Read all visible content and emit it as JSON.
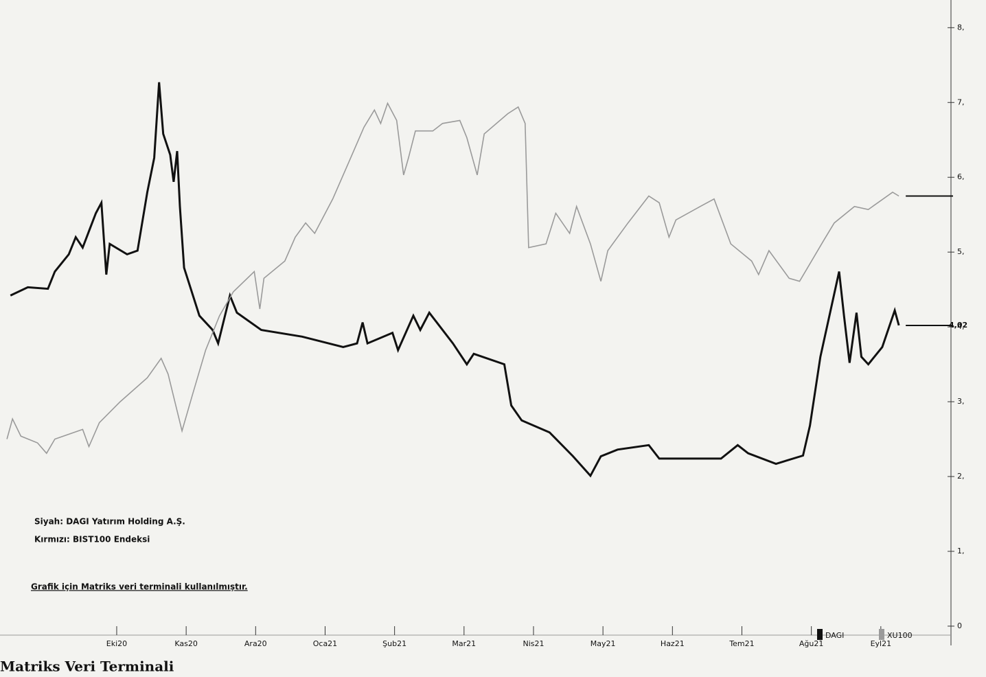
{
  "chart_data": {
    "type": "line",
    "footer": "Matriks Veri Terminali",
    "notes": [
      "Siyah: DAGI Yatırım Holding A.Ş.",
      "Kırmızı: BIST100 Endeksi"
    ],
    "source": "Grafik için Matriks veri terminali kullanılmıştır.",
    "xlim": [
      -0.68,
      13
    ],
    "xticks": [
      {
        "value": 1,
        "label": "Eki20"
      },
      {
        "value": 2,
        "label": "Kas20"
      },
      {
        "value": 3,
        "label": "Ara20"
      },
      {
        "value": 4,
        "label": "Oca21"
      },
      {
        "value": 5,
        "label": "Şub21"
      },
      {
        "value": 6,
        "label": "Mar21"
      },
      {
        "value": 7,
        "label": "Nis21"
      },
      {
        "value": 8,
        "label": "May21"
      },
      {
        "value": 9,
        "label": "Haz21"
      },
      {
        "value": 10,
        "label": "Tem21"
      },
      {
        "value": 11,
        "label": "Ağu21"
      },
      {
        "value": 12,
        "label": "Eyl21"
      }
    ],
    "ylim": [
      -0.12,
      8.37
    ],
    "yticks": [
      0,
      {
        "value": 1,
        "label": "1,"
      },
      {
        "value": 2,
        "label": "2,"
      },
      {
        "value": 3,
        "label": "3,"
      },
      {
        "value": 4,
        "label": "4,"
      },
      {
        "value": 5,
        "label": "5,"
      },
      {
        "value": 6,
        "label": "6,"
      },
      {
        "value": 7,
        "label": "7,"
      },
      {
        "value": 8,
        "label": "8,"
      }
    ],
    "last_price": {
      "value": 4.02,
      "label": "4,02"
    },
    "series": [
      {
        "name": "DAGI",
        "color": "#111111",
        "x": [
          -0.53,
          -0.28,
          0.01,
          0.11,
          0.31,
          0.41,
          0.51,
          0.7,
          0.78,
          0.85,
          0.9,
          1.15,
          1.3,
          1.44,
          1.54,
          1.61,
          1.67,
          1.77,
          1.82,
          1.87,
          1.91,
          1.97,
          2.19,
          2.38,
          2.46,
          2.63,
          2.73,
          3.08,
          3.67,
          4.26,
          4.46,
          4.54,
          4.61,
          4.97,
          5.05,
          5.27,
          5.37,
          5.5,
          5.84,
          6.04,
          6.14,
          6.58,
          6.68,
          6.83,
          7.23,
          7.57,
          7.82,
          7.97,
          8.21,
          8.66,
          8.81,
          9.4,
          9.7,
          9.94,
          10.09,
          10.49,
          10.88,
          10.98,
          11.13,
          11.4,
          11.47,
          11.55,
          11.65,
          11.72,
          11.82,
          12.02,
          12.2,
          12.26
        ],
        "values": [
          4.42,
          4.53,
          4.51,
          4.74,
          4.97,
          5.2,
          5.06,
          5.52,
          5.66,
          4.7,
          5.11,
          4.97,
          5.02,
          5.8,
          6.26,
          7.27,
          6.58,
          6.3,
          5.94,
          6.35,
          5.61,
          4.79,
          4.15,
          3.96,
          3.78,
          4.42,
          4.19,
          3.96,
          3.87,
          3.73,
          3.78,
          4.06,
          3.78,
          3.92,
          3.69,
          4.15,
          3.96,
          4.19,
          3.78,
          3.5,
          3.64,
          3.5,
          2.95,
          2.75,
          2.59,
          2.27,
          2.01,
          2.27,
          2.36,
          2.42,
          2.24,
          2.24,
          2.24,
          2.42,
          2.31,
          2.17,
          2.28,
          2.68,
          3.6,
          4.74,
          4.15,
          3.52,
          4.19,
          3.6,
          3.5,
          3.73,
          4.22,
          4.02
        ]
      },
      {
        "name": "XU100",
        "color": "#9a9a9a",
        "x": [
          -0.58,
          -0.5,
          -0.38,
          -0.14,
          -0.01,
          0.11,
          0.51,
          0.6,
          0.75,
          1.05,
          1.44,
          1.64,
          1.74,
          1.94,
          2.09,
          2.28,
          2.48,
          2.68,
          2.98,
          3.06,
          3.12,
          3.42,
          3.57,
          3.72,
          3.85,
          4.11,
          4.41,
          4.56,
          4.71,
          4.8,
          4.9,
          5.03,
          5.13,
          5.2,
          5.3,
          5.55,
          5.69,
          5.94,
          6.04,
          6.19,
          6.29,
          6.63,
          6.78,
          6.88,
          6.93,
          7.18,
          7.32,
          7.52,
          7.62,
          7.82,
          7.97,
          8.07,
          8.36,
          8.66,
          8.81,
          8.95,
          9.05,
          9.4,
          9.6,
          9.84,
          10.14,
          10.24,
          10.39,
          10.68,
          10.83,
          11.18,
          11.33,
          11.62,
          11.82,
          12.17,
          12.26
        ],
        "values": [
          2.5,
          2.77,
          2.54,
          2.45,
          2.31,
          2.5,
          2.63,
          2.4,
          2.72,
          3.0,
          3.32,
          3.58,
          3.37,
          2.61,
          3.09,
          3.69,
          4.15,
          4.47,
          4.74,
          4.24,
          4.65,
          4.88,
          5.2,
          5.39,
          5.25,
          5.71,
          6.35,
          6.67,
          6.9,
          6.72,
          6.99,
          6.76,
          6.03,
          6.26,
          6.62,
          6.62,
          6.72,
          6.76,
          6.53,
          6.03,
          6.58,
          6.85,
          6.94,
          6.72,
          5.06,
          5.11,
          5.52,
          5.25,
          5.61,
          5.11,
          4.61,
          5.02,
          5.39,
          5.75,
          5.66,
          5.2,
          5.43,
          5.61,
          5.71,
          5.11,
          4.88,
          4.7,
          5.02,
          4.65,
          4.61,
          5.16,
          5.39,
          5.61,
          5.57,
          5.8,
          5.75
        ]
      }
    ]
  }
}
